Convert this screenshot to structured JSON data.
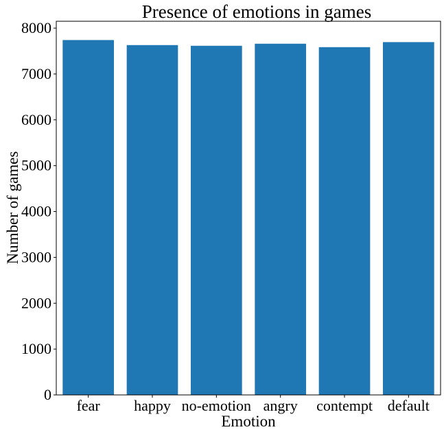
{
  "chart_data": {
    "type": "bar",
    "title": "Presence of emotions in games",
    "xlabel": "Emotion",
    "ylabel": "Number of games",
    "categories": [
      "fear",
      "happy",
      "no-emotion",
      "angry",
      "contempt",
      "default"
    ],
    "values": [
      7740,
      7630,
      7615,
      7660,
      7585,
      7695
    ],
    "ylim": [
      0,
      8150
    ],
    "yticks": [
      0,
      1000,
      2000,
      3000,
      4000,
      5000,
      6000,
      7000,
      8000
    ],
    "ytick_labels": [
      "0",
      "1000",
      "2000",
      "3000",
      "4000",
      "5000",
      "6000",
      "7000",
      "8000"
    ],
    "grid": false,
    "bar_color": "#1f77b4"
  }
}
